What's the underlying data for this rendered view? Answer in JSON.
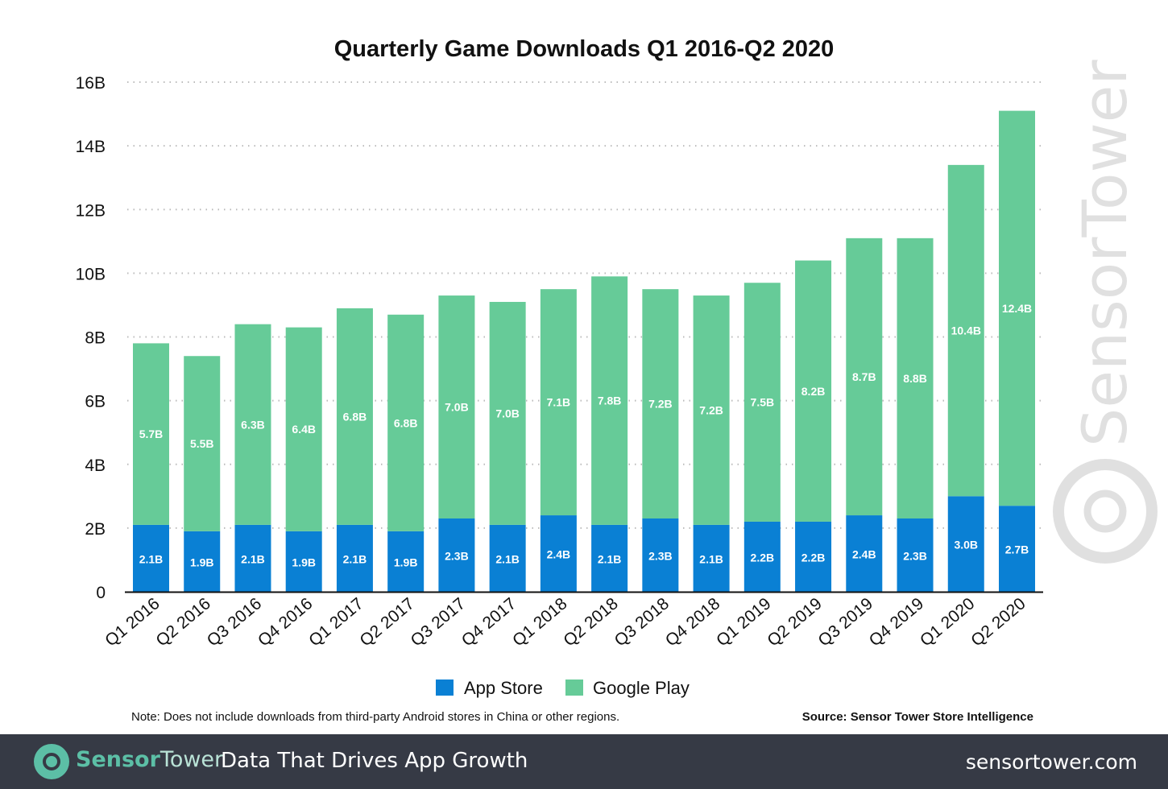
{
  "chart_data": {
    "type": "bar",
    "stacked": true,
    "title": "Quarterly Game Downloads Q1 2016-Q2 2020",
    "xlabel": "",
    "ylabel": "",
    "ylim": [
      0,
      16
    ],
    "y_ticks": [
      "0",
      "2B",
      "4B",
      "6B",
      "8B",
      "10B",
      "12B",
      "14B",
      "16B"
    ],
    "grid": true,
    "legend_position": "bottom",
    "categories": [
      "Q1 2016",
      "Q2 2016",
      "Q3 2016",
      "Q4 2016",
      "Q1 2017",
      "Q2 2017",
      "Q3 2017",
      "Q4 2017",
      "Q1 2018",
      "Q2 2018",
      "Q3 2018",
      "Q4 2018",
      "Q1 2019",
      "Q2 2019",
      "Q3 2019",
      "Q4 2019",
      "Q1 2020",
      "Q2 2020"
    ],
    "series": [
      {
        "name": "App Store",
        "color": "#0a80d4",
        "values": [
          2.1,
          1.9,
          2.1,
          1.9,
          2.1,
          1.9,
          2.3,
          2.1,
          2.4,
          2.1,
          2.3,
          2.1,
          2.2,
          2.2,
          2.4,
          2.3,
          3.0,
          2.7
        ],
        "labels": [
          "2.1B",
          "1.9B",
          "2.1B",
          "1.9B",
          "2.1B",
          "1.9B",
          "2.3B",
          "2.1B",
          "2.4B",
          "2.1B",
          "2.3B",
          "2.1B",
          "2.2B",
          "2.2B",
          "2.4B",
          "2.3B",
          "3.0B",
          "2.7B"
        ]
      },
      {
        "name": "Google Play",
        "color": "#66cb98",
        "values": [
          5.7,
          5.5,
          6.3,
          6.4,
          6.8,
          6.8,
          7.0,
          7.0,
          7.1,
          7.8,
          7.2,
          7.2,
          7.5,
          8.2,
          8.7,
          8.8,
          10.4,
          12.4
        ],
        "labels": [
          "5.7B",
          "5.5B",
          "6.3B",
          "6.4B",
          "6.8B",
          "6.8B",
          "7.0B",
          "7.0B",
          "7.1B",
          "7.8B",
          "7.2B",
          "7.2B",
          "7.5B",
          "8.2B",
          "8.7B",
          "8.8B",
          "10.4B",
          "12.4B"
        ]
      }
    ],
    "note": "Note: Does not include downloads from third-party Android stores in China or other regions.",
    "source": "Source: Sensor Tower Store Intelligence"
  },
  "watermark": "SensorTower",
  "footer": {
    "brand_bold": "Sensor",
    "brand_light": "Tower",
    "tagline": "Data That Drives App Growth",
    "url": "sensortower.com"
  }
}
